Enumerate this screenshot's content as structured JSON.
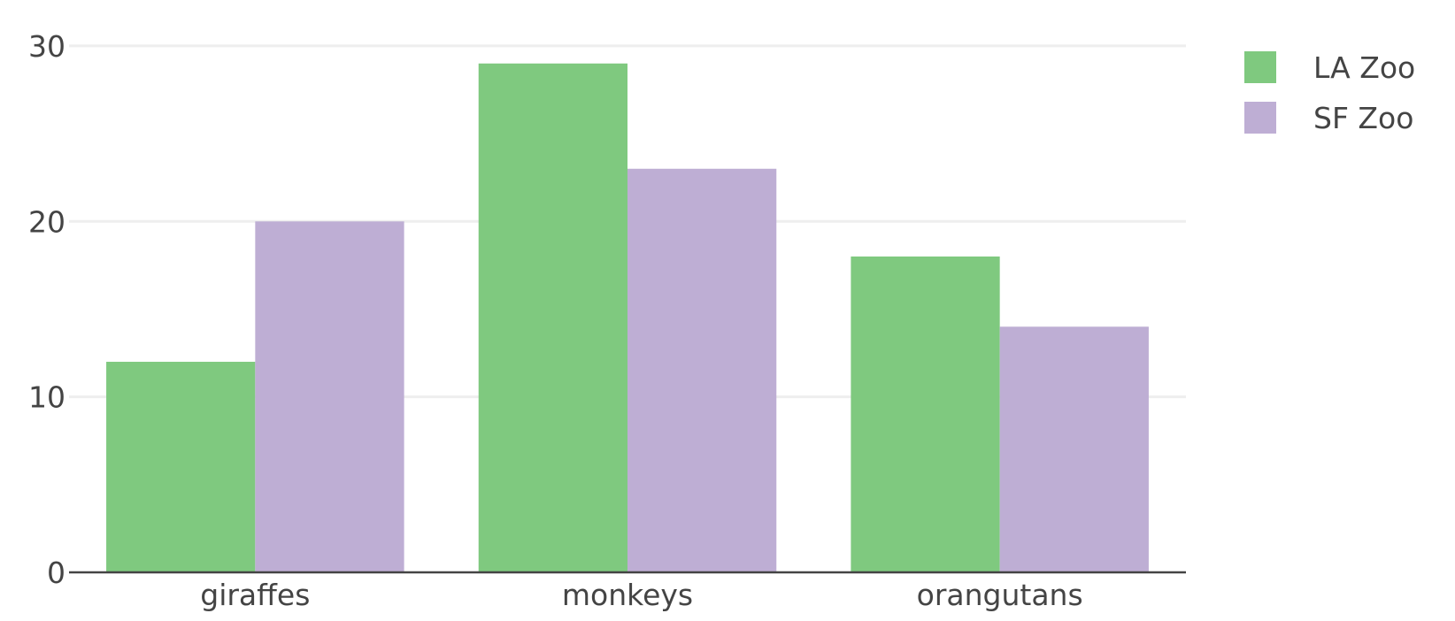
{
  "chart_data": {
    "type": "bar",
    "barmode": "group",
    "categories": [
      "giraffes",
      "monkeys",
      "orangutans"
    ],
    "series": [
      {
        "name": "LA Zoo",
        "values": [
          12,
          29,
          18
        ],
        "color": "#7fc97f"
      },
      {
        "name": "SF Zoo",
        "values": [
          20,
          23,
          14
        ],
        "color": "#beaed4"
      }
    ],
    "title": "",
    "xlabel": "",
    "ylabel": "",
    "ylim": [
      0,
      30.5
    ],
    "yticks": [
      0,
      10,
      20,
      30
    ],
    "grid": true,
    "legend_position": "top-right"
  }
}
